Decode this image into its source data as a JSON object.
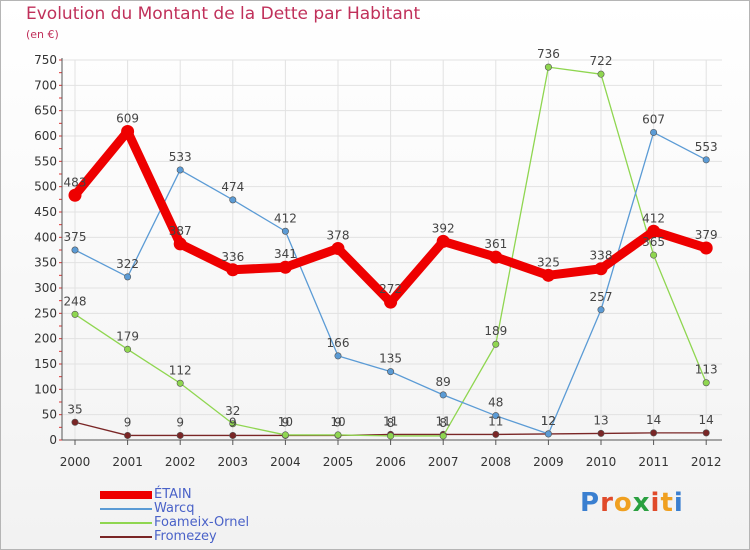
{
  "header": {
    "title": "Evolution du Montant de la Dette par Habitant",
    "subtitle": "(en €)"
  },
  "logo": {
    "text": "Proxiti",
    "colors": [
      "#3a7fd0",
      "#e04a2a",
      "#f0a020",
      "#2aa040",
      "#e04a2a",
      "#f0a020",
      "#3a7fd0"
    ]
  },
  "chart_data": {
    "type": "line",
    "title": "Evolution du Montant de la Dette par Habitant",
    "subtitle": "(en €)",
    "xlabel": "",
    "ylabel": "",
    "x": [
      "2000",
      "2001",
      "2002",
      "2003",
      "2004",
      "2005",
      "2006",
      "2007",
      "2008",
      "2009",
      "2010",
      "2011",
      "2012"
    ],
    "ylim": [
      0,
      750
    ],
    "yticks": [
      0,
      50,
      100,
      150,
      200,
      250,
      300,
      350,
      400,
      450,
      500,
      550,
      600,
      650,
      700,
      750
    ],
    "grid": true,
    "legend_position": "bottom-left",
    "series": [
      {
        "name": "ÉTAIN",
        "color": "#ee0000",
        "values": [
          483,
          609,
          387,
          336,
          341,
          378,
          272,
          392,
          361,
          325,
          338,
          412,
          379
        ]
      },
      {
        "name": "Warcq",
        "color": "#5b9bd5",
        "values": [
          375,
          322,
          533,
          474,
          412,
          166,
          135,
          89,
          48,
          12,
          257,
          607,
          553
        ]
      },
      {
        "name": "Foameix-Ornel",
        "color": "#8fd650",
        "values": [
          248,
          179,
          112,
          32,
          10,
          10,
          8,
          8,
          189,
          736,
          722,
          365,
          113
        ]
      },
      {
        "name": "Fromezey",
        "color": "#7a2626",
        "values": [
          35,
          9,
          9,
          9,
          9,
          9,
          11,
          11,
          11,
          12,
          13,
          14,
          14
        ]
      }
    ]
  }
}
